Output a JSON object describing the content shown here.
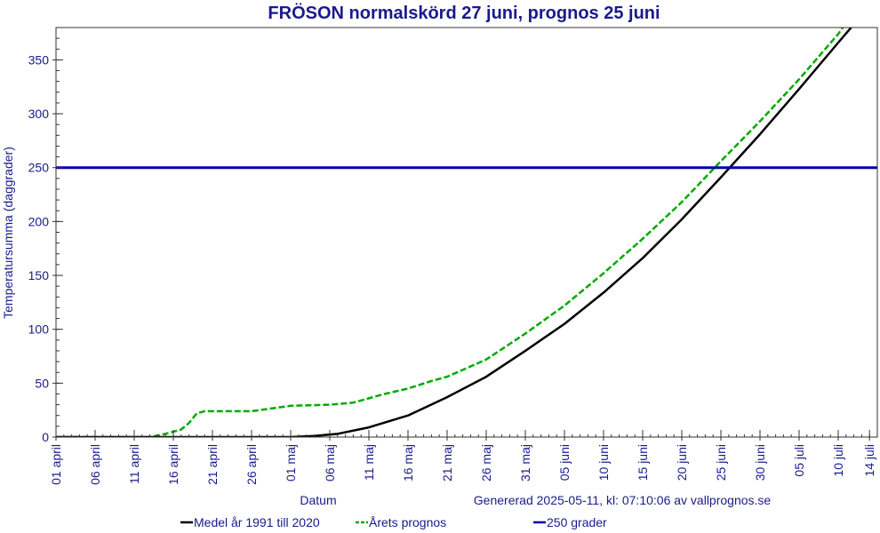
{
  "chart_data": {
    "type": "line",
    "title": "FRÖSON normalskörd 27 juni, prognos 25 juni",
    "xlabel": "Datum",
    "ylabel": "Temperatursumma (daggrader)",
    "footnote": "Genererad 2025-05-11, kl: 07:10:06 av vallprognos.se",
    "x_axis": {
      "unit": "days since 01 april",
      "xlim": [
        0,
        105
      ],
      "ticks": [
        {
          "x": 0,
          "label": "01 april"
        },
        {
          "x": 5,
          "label": "06 april"
        },
        {
          "x": 10,
          "label": "11 april"
        },
        {
          "x": 15,
          "label": "16 april"
        },
        {
          "x": 20,
          "label": "21 april"
        },
        {
          "x": 25,
          "label": "26 april"
        },
        {
          "x": 30,
          "label": "01 maj"
        },
        {
          "x": 35,
          "label": "06 maj"
        },
        {
          "x": 40,
          "label": "11 maj"
        },
        {
          "x": 45,
          "label": "16 maj"
        },
        {
          "x": 50,
          "label": "21 maj"
        },
        {
          "x": 55,
          "label": "26 maj"
        },
        {
          "x": 60,
          "label": "31 maj"
        },
        {
          "x": 65,
          "label": "05 juni"
        },
        {
          "x": 70,
          "label": "10 juni"
        },
        {
          "x": 75,
          "label": "15 juni"
        },
        {
          "x": 80,
          "label": "20 juni"
        },
        {
          "x": 85,
          "label": "25 juni"
        },
        {
          "x": 90,
          "label": "30 juni"
        },
        {
          "x": 95,
          "label": "05 juli"
        },
        {
          "x": 100,
          "label": "10 juli"
        },
        {
          "x": 104,
          "label": "14 juli"
        }
      ]
    },
    "y_axis": {
      "ylim": [
        0,
        380
      ],
      "ticks": [
        {
          "y": 0,
          "label": "0"
        },
        {
          "y": 50,
          "label": "50"
        },
        {
          "y": 100,
          "label": "100"
        },
        {
          "y": 150,
          "label": "150"
        },
        {
          "y": 200,
          "label": "200"
        },
        {
          "y": 250,
          "label": "250"
        },
        {
          "y": 300,
          "label": "300"
        },
        {
          "y": 350,
          "label": "350"
        }
      ],
      "minor_step": 10
    },
    "grid": false,
    "legend_position": "bottom",
    "series": [
      {
        "name": "Medel år 1991 till 2020",
        "color": "#000000",
        "style": "solid",
        "x": [
          0,
          15,
          30,
          33,
          36,
          40,
          45,
          50,
          55,
          60,
          65,
          70,
          75,
          80,
          85,
          90,
          95,
          100,
          104
        ],
        "y": [
          0,
          0,
          0,
          1,
          3,
          9,
          20,
          37,
          56,
          80,
          105,
          134,
          166,
          202,
          241,
          281,
          323,
          366,
          400
        ]
      },
      {
        "name": "Årets prognos",
        "color": "#00aa00",
        "style": "dashed",
        "x": [
          0,
          12,
          14,
          16,
          17,
          18,
          19,
          20,
          25,
          30,
          35,
          38,
          42,
          45,
          48,
          50,
          55,
          60,
          65,
          70,
          75,
          80,
          85,
          90,
          95,
          100,
          103
        ],
        "y": [
          0,
          0,
          3,
          7,
          13,
          22,
          24,
          24,
          24,
          29,
          30,
          32,
          40,
          45,
          52,
          56,
          72,
          96,
          122,
          152,
          184,
          218,
          256,
          293,
          332,
          374,
          405
        ]
      },
      {
        "name": "250 grader",
        "color": "#0000aa",
        "style": "solid",
        "x": [
          0,
          105
        ],
        "y": [
          250,
          250
        ]
      }
    ]
  }
}
